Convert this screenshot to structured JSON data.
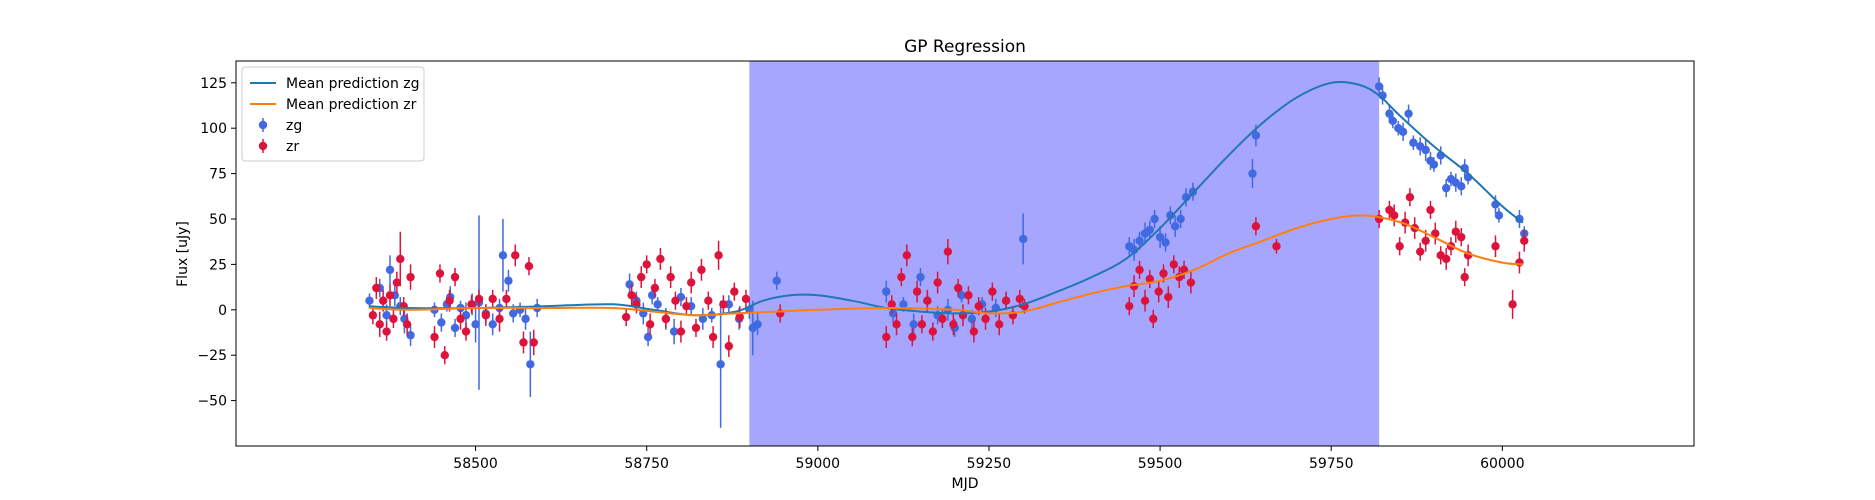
{
  "chart_data": {
    "type": "scatter",
    "title": "GP Regression",
    "xlabel": "MJD",
    "ylabel": "Flux [uJy]",
    "xlim": [
      58150,
      60280
    ],
    "ylim": [
      -75,
      137
    ],
    "xticks": [
      58500,
      58750,
      59000,
      59250,
      59500,
      59750,
      60000
    ],
    "yticks": [
      -50,
      -25,
      0,
      25,
      50,
      75,
      100,
      125
    ],
    "legend_position": "upper-left",
    "shaded_region": {
      "x_start": 58900,
      "x_end": 59820,
      "color": "#a6a6ff"
    },
    "lines": [
      {
        "name": "Mean prediction zg",
        "color": "#1f77b4",
        "x": [
          58345,
          58400,
          58500,
          58600,
          58700,
          58760,
          58820,
          58880,
          58920,
          58960,
          59000,
          59050,
          59100,
          59150,
          59200,
          59250,
          59300,
          59350,
          59400,
          59450,
          59500,
          59550,
          59600,
          59650,
          59700,
          59750,
          59790,
          59820,
          59850,
          59900,
          59950,
          60000,
          60030
        ],
        "y": [
          2,
          1,
          1,
          2,
          3,
          0,
          -3,
          -1,
          5,
          8,
          8,
          5,
          1,
          -1,
          -2,
          -1,
          3,
          10,
          18,
          28,
          45,
          65,
          85,
          103,
          117,
          125,
          124,
          118,
          107,
          90,
          75,
          57,
          48
        ]
      },
      {
        "name": "Mean prediction zr",
        "color": "#ff7f0e",
        "x": [
          58345,
          58400,
          58500,
          58600,
          58700,
          58760,
          58820,
          58880,
          58940,
          59000,
          59100,
          59200,
          59250,
          59300,
          59350,
          59400,
          59450,
          59500,
          59550,
          59600,
          59650,
          59700,
          59750,
          59790,
          59820,
          59860,
          59900,
          59950,
          60000,
          60030
        ],
        "y": [
          1,
          0,
          1,
          1,
          1,
          -1,
          -3,
          -2,
          -1,
          0,
          1,
          0,
          -2,
          -1,
          4,
          9,
          13,
          16,
          22,
          31,
          38,
          45,
          50,
          52,
          51,
          47,
          40,
          31,
          26,
          25
        ]
      }
    ],
    "series": [
      {
        "name": "zg",
        "color": "#4169e1",
        "points": [
          [
            58345,
            5,
            4
          ],
          [
            58360,
            12,
            5
          ],
          [
            58370,
            -3,
            6
          ],
          [
            58375,
            22,
            8
          ],
          [
            58382,
            8,
            6
          ],
          [
            58390,
            2,
            5
          ],
          [
            58396,
            -5,
            8
          ],
          [
            58405,
            -14,
            6
          ],
          [
            58440,
            0,
            4
          ],
          [
            58450,
            -7,
            5
          ],
          [
            58458,
            3,
            4
          ],
          [
            58463,
            7,
            6
          ],
          [
            58470,
            -10,
            5
          ],
          [
            58478,
            1,
            4
          ],
          [
            58486,
            -3,
            7
          ],
          [
            58495,
            3,
            6
          ],
          [
            58500,
            -8,
            10
          ],
          [
            58505,
            4,
            48
          ],
          [
            58515,
            -2,
            5
          ],
          [
            58525,
            -8,
            6
          ],
          [
            58535,
            1,
            5
          ],
          [
            58540,
            30,
            20
          ],
          [
            58548,
            16,
            6
          ],
          [
            58555,
            -2,
            5
          ],
          [
            58565,
            0,
            4
          ],
          [
            58573,
            -5,
            6
          ],
          [
            58580,
            -30,
            18
          ],
          [
            58590,
            1,
            5
          ],
          [
            58725,
            14,
            6
          ],
          [
            58735,
            5,
            5
          ],
          [
            58745,
            -2,
            6
          ],
          [
            58752,
            -15,
            5
          ],
          [
            58758,
            8,
            5
          ],
          [
            58766,
            3,
            4
          ],
          [
            58778,
            -5,
            6
          ],
          [
            58790,
            -12,
            7
          ],
          [
            58800,
            7,
            5
          ],
          [
            58815,
            2,
            5
          ],
          [
            58832,
            -5,
            6
          ],
          [
            58845,
            -3,
            4
          ],
          [
            58858,
            -30,
            35
          ],
          [
            58870,
            3,
            5
          ],
          [
            58885,
            -5,
            6
          ],
          [
            58900,
            0,
            5
          ],
          [
            58905,
            -10,
            15
          ],
          [
            58912,
            -8,
            6
          ],
          [
            58940,
            16,
            5
          ],
          [
            59100,
            10,
            6
          ],
          [
            59110,
            -2,
            5
          ],
          [
            59125,
            3,
            4
          ],
          [
            59140,
            -8,
            6
          ],
          [
            59150,
            18,
            5
          ],
          [
            59160,
            5,
            4
          ],
          [
            59175,
            -3,
            5
          ],
          [
            59190,
            0,
            6
          ],
          [
            59200,
            -10,
            5
          ],
          [
            59210,
            8,
            4
          ],
          [
            59225,
            -5,
            5
          ],
          [
            59240,
            3,
            4
          ],
          [
            59260,
            1,
            5
          ],
          [
            59275,
            5,
            4
          ],
          [
            59300,
            39,
            14
          ],
          [
            59455,
            35,
            5
          ],
          [
            59462,
            33,
            6
          ],
          [
            59470,
            38,
            5
          ],
          [
            59478,
            42,
            6
          ],
          [
            59485,
            44,
            5
          ],
          [
            59492,
            50,
            5
          ],
          [
            59500,
            40,
            6
          ],
          [
            59508,
            37,
            5
          ],
          [
            59515,
            52,
            5
          ],
          [
            59522,
            46,
            6
          ],
          [
            59530,
            50,
            5
          ],
          [
            59538,
            62,
            5
          ],
          [
            59548,
            65,
            5
          ],
          [
            59635,
            75,
            8
          ],
          [
            59640,
            96,
            6
          ],
          [
            59820,
            123,
            5
          ],
          [
            59825,
            118,
            5
          ],
          [
            59835,
            108,
            5
          ],
          [
            59840,
            104,
            4
          ],
          [
            59848,
            100,
            4
          ],
          [
            59855,
            98,
            5
          ],
          [
            59863,
            108,
            5
          ],
          [
            59870,
            92,
            4
          ],
          [
            59880,
            90,
            5
          ],
          [
            59888,
            88,
            6
          ],
          [
            59895,
            82,
            5
          ],
          [
            59900,
            80,
            4
          ],
          [
            59910,
            85,
            5
          ],
          [
            59918,
            67,
            5
          ],
          [
            59925,
            72,
            4
          ],
          [
            59932,
            70,
            5
          ],
          [
            59940,
            68,
            5
          ],
          [
            59945,
            78,
            5
          ],
          [
            59950,
            73,
            4
          ],
          [
            59990,
            58,
            5
          ],
          [
            59995,
            52,
            4
          ],
          [
            60025,
            50,
            5
          ],
          [
            60032,
            42,
            4
          ]
        ]
      },
      {
        "name": "zr",
        "color": "#dc143c",
        "points": [
          [
            58350,
            -3,
            5
          ],
          [
            58355,
            12,
            6
          ],
          [
            58360,
            -8,
            7
          ],
          [
            58365,
            5,
            6
          ],
          [
            58370,
            -12,
            5
          ],
          [
            58375,
            8,
            6
          ],
          [
            58380,
            -5,
            5
          ],
          [
            58385,
            15,
            6
          ],
          [
            58390,
            28,
            15
          ],
          [
            58395,
            2,
            5
          ],
          [
            58400,
            -8,
            6
          ],
          [
            58405,
            18,
            7
          ],
          [
            58440,
            -15,
            6
          ],
          [
            58448,
            20,
            5
          ],
          [
            58455,
            -25,
            5
          ],
          [
            58462,
            5,
            6
          ],
          [
            58470,
            18,
            5
          ],
          [
            58478,
            -5,
            6
          ],
          [
            58486,
            -12,
            5
          ],
          [
            58494,
            3,
            5
          ],
          [
            58505,
            6,
            5
          ],
          [
            58515,
            -3,
            6
          ],
          [
            58525,
            6,
            5
          ],
          [
            58535,
            -5,
            7
          ],
          [
            58545,
            6,
            5
          ],
          [
            58558,
            30,
            6
          ],
          [
            58570,
            -18,
            6
          ],
          [
            58578,
            24,
            5
          ],
          [
            58585,
            -18,
            7
          ],
          [
            58720,
            -4,
            5
          ],
          [
            58728,
            8,
            6
          ],
          [
            58735,
            3,
            5
          ],
          [
            58742,
            18,
            6
          ],
          [
            58750,
            25,
            5
          ],
          [
            58755,
            -8,
            6
          ],
          [
            58762,
            12,
            5
          ],
          [
            58770,
            28,
            6
          ],
          [
            58778,
            -5,
            5
          ],
          [
            58785,
            18,
            6
          ],
          [
            58792,
            5,
            5
          ],
          [
            58800,
            -12,
            6
          ],
          [
            58808,
            2,
            5
          ],
          [
            58815,
            15,
            6
          ],
          [
            58822,
            -10,
            5
          ],
          [
            58830,
            22,
            6
          ],
          [
            58840,
            5,
            5
          ],
          [
            58847,
            -15,
            6
          ],
          [
            58855,
            30,
            8
          ],
          [
            58862,
            3,
            5
          ],
          [
            58870,
            -20,
            6
          ],
          [
            58878,
            10,
            5
          ],
          [
            58886,
            -4,
            6
          ],
          [
            58895,
            6,
            5
          ],
          [
            58945,
            -2,
            5
          ],
          [
            59100,
            -15,
            6
          ],
          [
            59108,
            3,
            5
          ],
          [
            59115,
            -8,
            6
          ],
          [
            59122,
            18,
            5
          ],
          [
            59130,
            30,
            6
          ],
          [
            59138,
            -15,
            5
          ],
          [
            59145,
            10,
            6
          ],
          [
            59152,
            -8,
            5
          ],
          [
            59160,
            5,
            6
          ],
          [
            59168,
            -12,
            5
          ],
          [
            59175,
            15,
            6
          ],
          [
            59182,
            -5,
            5
          ],
          [
            59190,
            32,
            7
          ],
          [
            59198,
            -8,
            6
          ],
          [
            59205,
            12,
            5
          ],
          [
            59212,
            -3,
            6
          ],
          [
            59220,
            8,
            5
          ],
          [
            59228,
            -12,
            6
          ],
          [
            59235,
            2,
            5
          ],
          [
            59245,
            -5,
            6
          ],
          [
            59255,
            10,
            5
          ],
          [
            59265,
            -8,
            6
          ],
          [
            59275,
            5,
            5
          ],
          [
            59285,
            -3,
            5
          ],
          [
            59295,
            6,
            5
          ],
          [
            59302,
            2,
            4
          ],
          [
            59455,
            2,
            5
          ],
          [
            59462,
            13,
            6
          ],
          [
            59470,
            22,
            5
          ],
          [
            59478,
            5,
            6
          ],
          [
            59485,
            17,
            5
          ],
          [
            59490,
            -5,
            5
          ],
          [
            59498,
            10,
            6
          ],
          [
            59505,
            20,
            5
          ],
          [
            59512,
            7,
            6
          ],
          [
            59520,
            25,
            5
          ],
          [
            59528,
            18,
            6
          ],
          [
            59535,
            22,
            5
          ],
          [
            59545,
            15,
            6
          ],
          [
            59640,
            46,
            5
          ],
          [
            59670,
            35,
            4
          ],
          [
            59820,
            50,
            5
          ],
          [
            59835,
            55,
            5
          ],
          [
            59842,
            52,
            6
          ],
          [
            59850,
            35,
            5
          ],
          [
            59858,
            48,
            6
          ],
          [
            59865,
            62,
            5
          ],
          [
            59872,
            45,
            6
          ],
          [
            59880,
            32,
            5
          ],
          [
            59888,
            38,
            6
          ],
          [
            59895,
            55,
            5
          ],
          [
            59902,
            42,
            6
          ],
          [
            59910,
            30,
            5
          ],
          [
            59918,
            28,
            6
          ],
          [
            59925,
            35,
            5
          ],
          [
            59932,
            43,
            6
          ],
          [
            59940,
            40,
            5
          ],
          [
            59945,
            18,
            5
          ],
          [
            59950,
            30,
            6
          ],
          [
            59990,
            35,
            6
          ],
          [
            60015,
            3,
            8
          ],
          [
            60025,
            26,
            6
          ],
          [
            60032,
            38,
            6
          ]
        ]
      }
    ]
  }
}
